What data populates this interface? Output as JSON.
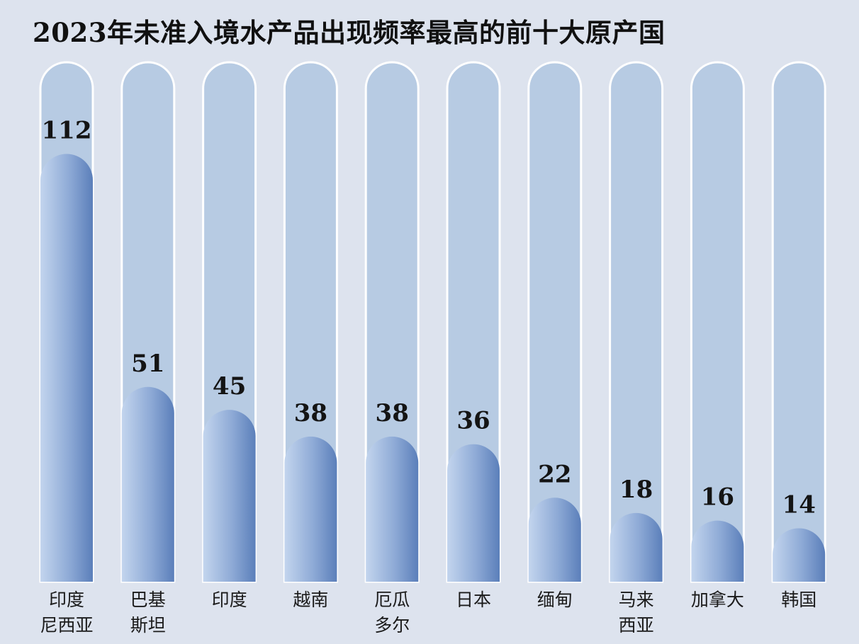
{
  "chart_data": {
    "type": "bar",
    "title": "2023年未准入境水产品出现频率最高的前十大原产国",
    "categories": [
      [
        "印度",
        "尼西亚"
      ],
      [
        "巴基",
        "斯坦"
      ],
      [
        "印度"
      ],
      [
        "越南"
      ],
      [
        "厄瓜",
        "多尔"
      ],
      [
        "日本"
      ],
      [
        "缅甸"
      ],
      [
        "马来",
        "西亚"
      ],
      [
        "加拿大"
      ],
      [
        "韩国"
      ]
    ],
    "values": [
      112,
      51,
      45,
      38,
      38,
      36,
      22,
      18,
      16,
      14
    ],
    "ylim": [
      0,
      136
    ],
    "xlabel": "",
    "ylabel": "",
    "grid": false,
    "colors": {
      "track": "#b7cbe3",
      "track_border": "#ffffff",
      "bar_light": "#c3d5ee",
      "bar_dark": "#5b7fba",
      "background": "#dde3ee"
    }
  }
}
